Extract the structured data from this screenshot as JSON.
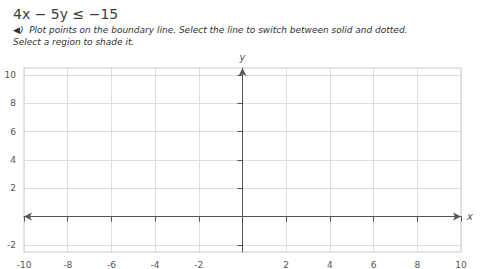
{
  "chart_data": {
    "type": "scatter",
    "title": "4x − 5y ≤ −15",
    "subtitle": "◀︎)  Plot points on the boundary line. Select the line to switch between solid and dotted.\nSelect a region to shade it.",
    "xlabel": "x",
    "ylabel": "y",
    "xlim": [
      -10,
      10
    ],
    "ylim": [
      -2.5,
      10.5
    ],
    "xticks": [
      -10,
      -8,
      -6,
      -4,
      -2,
      2,
      4,
      6,
      8,
      10
    ],
    "yticks": [
      -2,
      2,
      4,
      6,
      8,
      10
    ],
    "grid": true
  }
}
